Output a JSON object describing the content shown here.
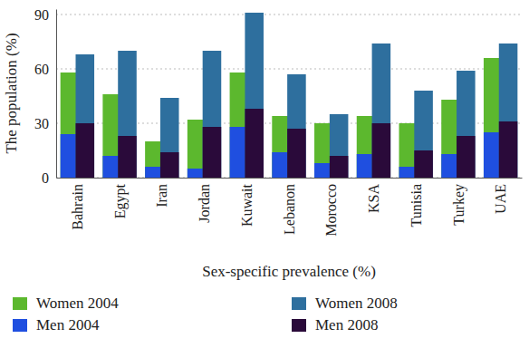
{
  "chart_data": {
    "type": "bar",
    "x_label": "Sex-specific prevalence (%)",
    "y_label": "The population (%)",
    "categories": [
      "Bahrain",
      "Egypt",
      "Iran",
      "Jordan",
      "Kuwait",
      "Lebanon",
      "Morocco",
      "KSA",
      "Tunisia",
      "Turkey",
      "UAE"
    ],
    "series": [
      {
        "name": "Women 2004",
        "color": "#5cb82e",
        "values": [
          58,
          46,
          20,
          32,
          58,
          34,
          30,
          34,
          30,
          43,
          66
        ]
      },
      {
        "name": "Men 2004",
        "color": "#1f4fe0",
        "values": [
          24,
          12,
          6,
          5,
          28,
          14,
          8,
          13,
          6,
          13,
          25
        ]
      },
      {
        "name": "Women 2008",
        "color": "#2e6f9e",
        "values": [
          68,
          70,
          44,
          70,
          91,
          57,
          35,
          74,
          48,
          59,
          74
        ]
      },
      {
        "name": "Men 2008",
        "color": "#2a0a3a",
        "values": [
          30,
          23,
          14,
          28,
          38,
          27,
          12,
          30,
          15,
          23,
          31
        ]
      }
    ],
    "ylim": [
      0,
      93
    ],
    "yticks": [
      0,
      30,
      60,
      90
    ],
    "grid": true,
    "legend": "bottom"
  }
}
